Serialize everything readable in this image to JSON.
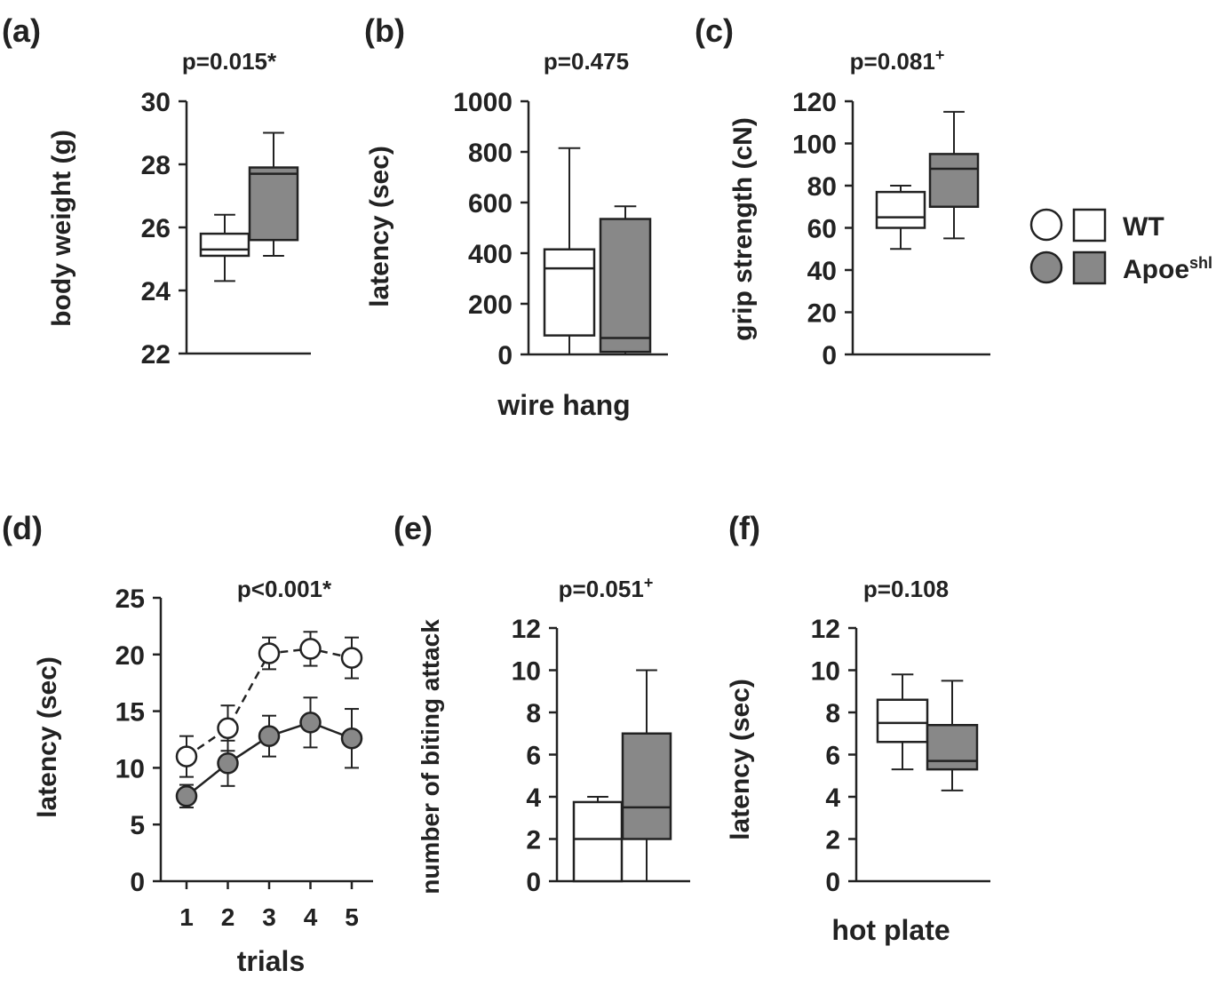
{
  "colors": {
    "wt": "#ffffff",
    "apoe": "#888888",
    "ink": "#222222"
  },
  "legend": {
    "entries": [
      {
        "name": "WT",
        "fill": "#ffffff"
      },
      {
        "name": "Apoe",
        "superscript": "shl",
        "fill": "#888888"
      }
    ]
  },
  "chart_data": [
    {
      "id": "a",
      "panel_label": "(a)",
      "type": "box",
      "title": "p=0.015*",
      "ylabel": "body weight (g)",
      "xlabel": "",
      "ylim": [
        22,
        30
      ],
      "yticks": [
        22,
        24,
        26,
        28,
        30
      ],
      "groups": [
        {
          "name": "WT",
          "whisker_low": 24.3,
          "q1": 25.1,
          "median": 25.3,
          "q3": 25.8,
          "whisker_high": 26.4
        },
        {
          "name": "Apoe shl",
          "whisker_low": 25.1,
          "q1": 25.6,
          "median": 27.7,
          "q3": 27.9,
          "whisker_high": 29.0
        }
      ]
    },
    {
      "id": "b",
      "panel_label": "(b)",
      "type": "box",
      "title": "p=0.475",
      "ylabel": "latency (sec)",
      "xlabel": "wire hang",
      "ylim": [
        0,
        1000
      ],
      "yticks": [
        0,
        200,
        400,
        600,
        800,
        1000
      ],
      "groups": [
        {
          "name": "WT",
          "whisker_low": 0,
          "q1": 75,
          "median": 340,
          "q3": 415,
          "whisker_high": 815
        },
        {
          "name": "Apoe shl",
          "whisker_low": 0,
          "q1": 10,
          "median": 65,
          "q3": 535,
          "whisker_high": 585
        }
      ]
    },
    {
      "id": "c",
      "panel_label": "(c)",
      "type": "box",
      "title": "p=0.081",
      "title_sup": "+",
      "ylabel": "grip strength (cN)",
      "xlabel": "",
      "ylim": [
        0,
        120
      ],
      "yticks": [
        0,
        20,
        40,
        60,
        80,
        100,
        120
      ],
      "groups": [
        {
          "name": "WT",
          "whisker_low": 50,
          "q1": 60,
          "median": 65,
          "q3": 77,
          "whisker_high": 80
        },
        {
          "name": "Apoe shl",
          "whisker_low": 55,
          "q1": 70,
          "median": 88,
          "q3": 95,
          "whisker_high": 115
        }
      ]
    },
    {
      "id": "d",
      "panel_label": "(d)",
      "type": "line",
      "title": "p<0.001*",
      "ylabel": "latency (sec)",
      "xlabel": "trials",
      "ylim": [
        0,
        25
      ],
      "yticks": [
        0,
        5,
        10,
        15,
        20,
        25
      ],
      "x": [
        1,
        2,
        3,
        4,
        5
      ],
      "series": [
        {
          "name": "WT",
          "values": [
            11.0,
            13.5,
            20.1,
            20.5,
            19.7
          ],
          "errors": [
            1.8,
            2.0,
            1.4,
            1.5,
            1.8
          ],
          "style": "dashed"
        },
        {
          "name": "Apoe shl",
          "values": [
            7.5,
            10.4,
            12.8,
            14.0,
            12.6
          ],
          "errors": [
            1.0,
            2.0,
            1.8,
            2.2,
            2.6
          ],
          "style": "solid"
        }
      ]
    },
    {
      "id": "e",
      "panel_label": "(e)",
      "type": "box",
      "title": "p=0.051",
      "title_sup": "+",
      "ylabel": "number of biting attack",
      "xlabel": "",
      "ylim": [
        0,
        12
      ],
      "yticks": [
        0,
        2,
        4,
        6,
        8,
        10,
        12
      ],
      "groups": [
        {
          "name": "WT",
          "whisker_low": 0,
          "q1": 0,
          "median": 2,
          "q3": 3.75,
          "whisker_high": 4
        },
        {
          "name": "Apoe shl",
          "whisker_low": 0,
          "q1": 2,
          "median": 3.5,
          "q3": 7,
          "whisker_high": 10
        }
      ]
    },
    {
      "id": "f",
      "panel_label": "(f)",
      "type": "box",
      "title": "p=0.108",
      "ylabel": "latency (sec)",
      "xlabel": "hot plate",
      "ylim": [
        0,
        12
      ],
      "yticks": [
        0,
        2,
        4,
        6,
        8,
        10,
        12
      ],
      "groups": [
        {
          "name": "WT",
          "whisker_low": 5.3,
          "q1": 6.6,
          "median": 7.5,
          "q3": 8.6,
          "whisker_high": 9.8
        },
        {
          "name": "Apoe shl",
          "whisker_low": 4.3,
          "q1": 5.3,
          "median": 5.7,
          "q3": 7.4,
          "whisker_high": 9.5
        }
      ]
    }
  ]
}
